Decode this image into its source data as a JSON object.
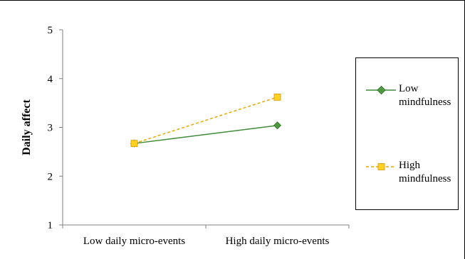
{
  "chart_data": {
    "type": "line",
    "title": "",
    "xlabel": "",
    "ylabel": "Daily affect",
    "categories": [
      "Low daily micro-events",
      "High daily micro-events"
    ],
    "ylim": [
      1,
      5
    ],
    "yticks": [
      "1",
      "2",
      "3",
      "4",
      "5"
    ],
    "grid": false,
    "legend_position": "right",
    "series": [
      {
        "name": "Low mindfulness",
        "values": [
          2.67,
          3.04
        ],
        "color": "#3d8b37",
        "marker": "diamond",
        "line_style": "solid",
        "marker_fill": "#4f9a3f"
      },
      {
        "name": "High mindfulness",
        "values": [
          2.67,
          3.62
        ],
        "color": "#e8a800",
        "marker": "square",
        "line_style": "dashed",
        "marker_fill": "#ffd21f"
      }
    ]
  },
  "legend": {
    "items": [
      {
        "line1": "Low",
        "line2": "mindfulness"
      },
      {
        "line1": "High",
        "line2": "mindfulness"
      }
    ]
  }
}
